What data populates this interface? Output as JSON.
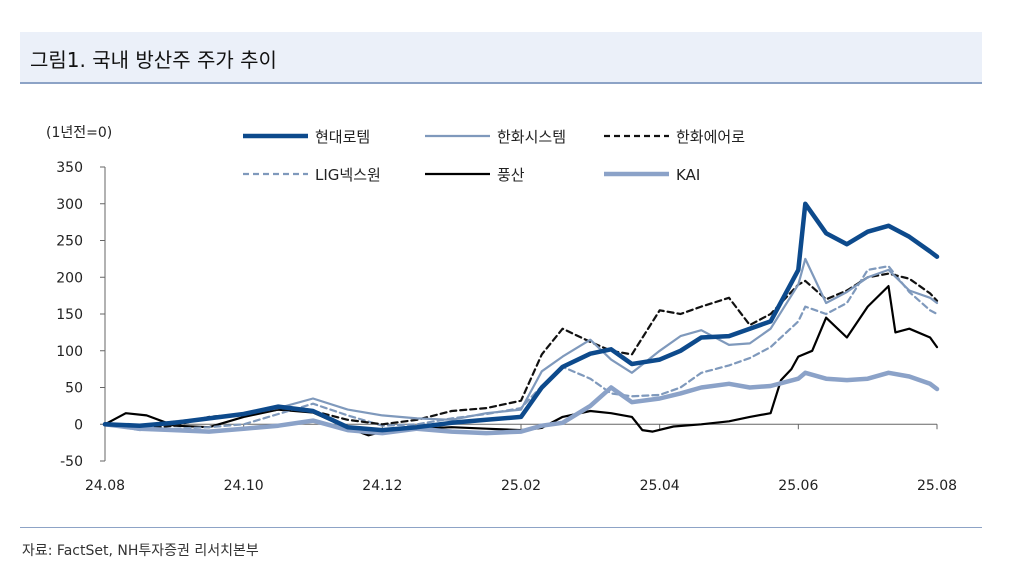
{
  "title": "그림1. 국내 방산주 주가 추이",
  "source": "자료: FactSet, NH투자증권 리서치본부",
  "chart_data": {
    "type": "line",
    "title": "그림1. 국내 방산주 주가 추이",
    "ylabel": "(1년전=0)",
    "xlabel": "",
    "ylim": [
      -50,
      350
    ],
    "yticks": [
      -50,
      0,
      50,
      100,
      150,
      200,
      250,
      300,
      350
    ],
    "xticks": [
      {
        "label": "24.08",
        "t": 0
      },
      {
        "label": "24.10",
        "t": 2
      },
      {
        "label": "24.12",
        "t": 4
      },
      {
        "label": "25.02",
        "t": 6
      },
      {
        "label": "25.04",
        "t": 8
      },
      {
        "label": "25.06",
        "t": 10
      },
      {
        "label": "25.08",
        "t": 12
      }
    ],
    "series": [
      {
        "name": "현대로템",
        "color": "#0d4a8c",
        "width": 4.5,
        "dash": "",
        "t": [
          0,
          0.5,
          1,
          1.5,
          2,
          2.5,
          3,
          3.5,
          4,
          4.5,
          5,
          5.5,
          6,
          6.3,
          6.6,
          7,
          7.3,
          7.6,
          8,
          8.3,
          8.6,
          9,
          9.3,
          9.6,
          10,
          10.1,
          10.4,
          10.7,
          11,
          11.3,
          11.6,
          11.9,
          12
        ],
        "values": [
          0,
          -2,
          2,
          8,
          14,
          24,
          18,
          -4,
          -8,
          -4,
          2,
          6,
          10,
          50,
          78,
          96,
          102,
          82,
          88,
          100,
          118,
          120,
          130,
          140,
          210,
          300,
          260,
          245,
          262,
          270,
          255,
          235,
          228
        ]
      },
      {
        "name": "한화시스템",
        "color": "#7f99bc",
        "width": 2.2,
        "dash": "",
        "t": [
          0,
          0.5,
          1,
          1.5,
          2,
          2.5,
          3,
          3.5,
          4,
          4.5,
          5,
          5.5,
          6,
          6.3,
          6.6,
          7,
          7.3,
          7.6,
          8,
          8.3,
          8.6,
          9,
          9.3,
          9.6,
          10,
          10.1,
          10.4,
          10.7,
          11,
          11.3,
          11.6,
          11.9,
          12
        ],
        "values": [
          0,
          -4,
          4,
          8,
          14,
          22,
          35,
          20,
          12,
          8,
          6,
          15,
          20,
          72,
          92,
          115,
          88,
          70,
          100,
          120,
          128,
          108,
          110,
          130,
          190,
          225,
          165,
          180,
          200,
          210,
          182,
          172,
          165
        ]
      },
      {
        "name": "한화에어로",
        "color": "#111111",
        "width": 2.2,
        "dash": "6,4",
        "t": [
          0,
          0.5,
          1,
          1.5,
          2,
          2.5,
          3,
          3.5,
          4,
          4.5,
          5,
          5.5,
          6,
          6.3,
          6.6,
          7,
          7.3,
          7.6,
          8,
          8.3,
          8.6,
          9,
          9.3,
          9.6,
          10,
          10.1,
          10.4,
          10.7,
          11,
          11.3,
          11.6,
          11.9,
          12
        ],
        "values": [
          0,
          -6,
          -2,
          10,
          14,
          20,
          18,
          6,
          0,
          6,
          18,
          22,
          32,
          95,
          130,
          112,
          100,
          95,
          155,
          150,
          160,
          172,
          135,
          150,
          190,
          195,
          170,
          182,
          200,
          205,
          198,
          178,
          168
        ]
      },
      {
        "name": "LIG넥스원",
        "color": "#7f99bc",
        "width": 2.2,
        "dash": "6,4",
        "t": [
          0,
          0.5,
          1,
          1.5,
          2,
          2.5,
          3,
          3.5,
          4,
          4.5,
          5,
          5.5,
          6,
          6.3,
          6.6,
          7,
          7.3,
          7.6,
          8,
          8.3,
          8.6,
          9,
          9.3,
          9.6,
          10,
          10.1,
          10.4,
          10.7,
          11,
          11.3,
          11.6,
          11.9,
          12
        ],
        "values": [
          0,
          -8,
          -6,
          -4,
          0,
          14,
          28,
          12,
          -2,
          0,
          8,
          14,
          22,
          52,
          78,
          62,
          42,
          38,
          40,
          50,
          70,
          80,
          90,
          105,
          140,
          160,
          150,
          165,
          210,
          215,
          180,
          155,
          150
        ]
      },
      {
        "name": "풍산",
        "color": "#000000",
        "width": 2.2,
        "dash": "",
        "t": [
          0,
          0.3,
          0.6,
          1,
          1.5,
          2,
          2.5,
          3,
          3.5,
          3.8,
          4,
          4.5,
          5,
          5.5,
          6,
          6.3,
          6.6,
          7,
          7.3,
          7.6,
          7.75,
          7.9,
          8.2,
          8.6,
          9,
          9.3,
          9.6,
          9.75,
          9.9,
          10,
          10.2,
          10.4,
          10.7,
          11,
          11.3,
          11.4,
          11.6,
          11.9,
          12
        ],
        "values": [
          0,
          15,
          12,
          -2,
          -4,
          10,
          20,
          16,
          -5,
          -15,
          -10,
          -6,
          -4,
          -6,
          -8,
          -5,
          10,
          18,
          15,
          10,
          -8,
          -10,
          -3,
          0,
          4,
          10,
          15,
          60,
          75,
          92,
          100,
          145,
          118,
          160,
          188,
          125,
          130,
          118,
          105
        ]
      },
      {
        "name": "KAI",
        "color": "#8ba2c8",
        "width": 4.5,
        "dash": "",
        "t": [
          0,
          0.5,
          1,
          1.5,
          2,
          2.5,
          3,
          3.5,
          4,
          4.5,
          5,
          5.5,
          6,
          6.3,
          6.6,
          7,
          7.3,
          7.6,
          8,
          8.3,
          8.6,
          9,
          9.3,
          9.6,
          10,
          10.1,
          10.4,
          10.7,
          11,
          11.3,
          11.6,
          11.9,
          12
        ],
        "values": [
          0,
          -6,
          -8,
          -10,
          -6,
          -2,
          5,
          -8,
          -12,
          -6,
          -10,
          -12,
          -10,
          -2,
          2,
          25,
          50,
          30,
          35,
          42,
          50,
          55,
          50,
          52,
          62,
          70,
          62,
          60,
          62,
          70,
          65,
          55,
          48
        ]
      }
    ]
  }
}
